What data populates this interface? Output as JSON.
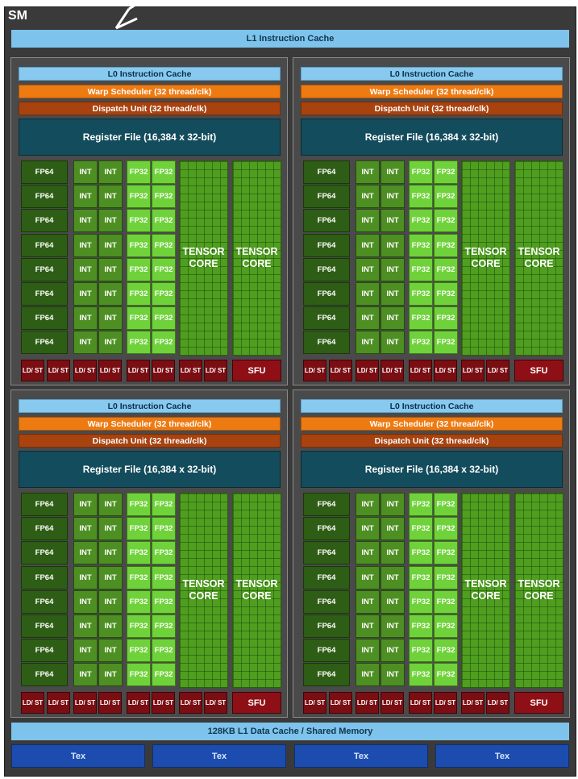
{
  "sm_label": "SM",
  "l1_instruction_cache": "L1 Instruction Cache",
  "l1_data_cache": "128KB L1 Data Cache / Shared Memory",
  "tex_units": [
    "Tex",
    "Tex",
    "Tex",
    "Tex"
  ],
  "quadrant": {
    "l0_cache": "L0 Instruction Cache",
    "warp_scheduler": "Warp Scheduler (32 thread/clk)",
    "dispatch_unit": "Dispatch Unit (32 thread/clk)",
    "register_file": "Register File (16,384 x 32-bit)",
    "fp64_label": "FP64",
    "int_label": "INT",
    "fp32_label": "FP32",
    "tensor_label": "TENSOR CORE",
    "ldst_label": "LD/ ST",
    "sfu_label": "SFU",
    "rows": 8,
    "ldst_units": 8
  },
  "colors": {
    "background": "#3a3a3a",
    "l1_cache": "#7ec3eb",
    "warp_scheduler": "#ee7a12",
    "dispatch_unit": "#a8420f",
    "register_file": "#134c5c",
    "fp64": "#2e5d15",
    "int": "#4e8f23",
    "fp32": "#6fd23a",
    "tensor": "#4f9e1f",
    "ldst": "#7a0e12",
    "tex": "#1c4cae"
  }
}
